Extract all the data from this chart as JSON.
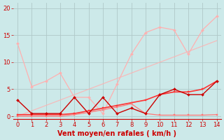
{
  "background_color": "#cce9e9",
  "grid_color": "#b0c8c8",
  "xlabel": "Vent moyen/en rafales ( km/h )",
  "xlabel_color": "#cc0000",
  "xlabel_fontsize": 7,
  "tick_color": "#cc0000",
  "tick_fontsize": 6,
  "xlim": [
    -0.3,
    14.3
  ],
  "ylim": [
    -0.5,
    21
  ],
  "xticks": [
    0,
    1,
    2,
    3,
    4,
    5,
    6,
    7,
    8,
    9,
    10,
    11,
    12,
    13,
    14
  ],
  "yticks": [
    0,
    5,
    10,
    15,
    20
  ],
  "lines": [
    {
      "x": [
        0,
        1,
        2,
        3,
        4,
        5,
        6,
        7,
        8,
        9,
        10,
        11,
        12,
        13,
        14
      ],
      "y": [
        13.5,
        5.5,
        6.5,
        8.0,
        3.5,
        3.5,
        0.5,
        6.0,
        11.5,
        15.5,
        16.5,
        16.0,
        11.5,
        16.0,
        18.5
      ],
      "color": "#ffb0b0",
      "marker": "D",
      "markersize": 2.0,
      "linewidth": 0.9,
      "zorder": 2
    },
    {
      "x": [
        0,
        1,
        2,
        3,
        4,
        5,
        6,
        7,
        8,
        9,
        10,
        11,
        12,
        13,
        14
      ],
      "y": [
        0.0,
        1.0,
        2.0,
        3.0,
        4.0,
        5.0,
        6.0,
        7.0,
        8.0,
        9.0,
        10.0,
        11.0,
        12.0,
        13.0,
        14.0
      ],
      "color": "#ffb0b0",
      "marker": "D",
      "markersize": 2.0,
      "linewidth": 0.9,
      "zorder": 2
    },
    {
      "x": [
        0,
        1,
        2,
        3,
        4,
        5,
        6,
        7,
        8,
        9,
        10,
        11,
        12,
        13,
        14
      ],
      "y": [
        3.0,
        0.5,
        0.5,
        0.5,
        3.5,
        0.5,
        3.5,
        0.5,
        1.5,
        0.5,
        4.0,
        5.0,
        4.0,
        4.0,
        6.5
      ],
      "color": "#cc0000",
      "marker": "D",
      "markersize": 2.0,
      "linewidth": 1.0,
      "zorder": 4
    },
    {
      "x": [
        0,
        1,
        2,
        3,
        4,
        5,
        6,
        7,
        8,
        9,
        10,
        11,
        12,
        13,
        14
      ],
      "y": [
        0.3,
        0.3,
        0.3,
        0.3,
        0.5,
        1.0,
        1.5,
        2.0,
        2.5,
        3.0,
        4.0,
        4.5,
        4.5,
        5.0,
        6.5
      ],
      "color": "#ff3333",
      "marker": "s",
      "markersize": 1.8,
      "linewidth": 1.2,
      "zorder": 3
    },
    {
      "x": [
        0,
        1,
        2,
        3,
        4,
        5,
        6,
        7,
        8,
        9,
        10,
        11,
        12,
        13,
        14
      ],
      "y": [
        0.0,
        0.0,
        0.0,
        0.0,
        0.3,
        0.7,
        1.2,
        1.7,
        2.3,
        0.5,
        0.2,
        0.2,
        0.2,
        0.2,
        0.3
      ],
      "color": "#ff7777",
      "marker": "s",
      "markersize": 1.8,
      "linewidth": 0.9,
      "zorder": 3
    }
  ]
}
